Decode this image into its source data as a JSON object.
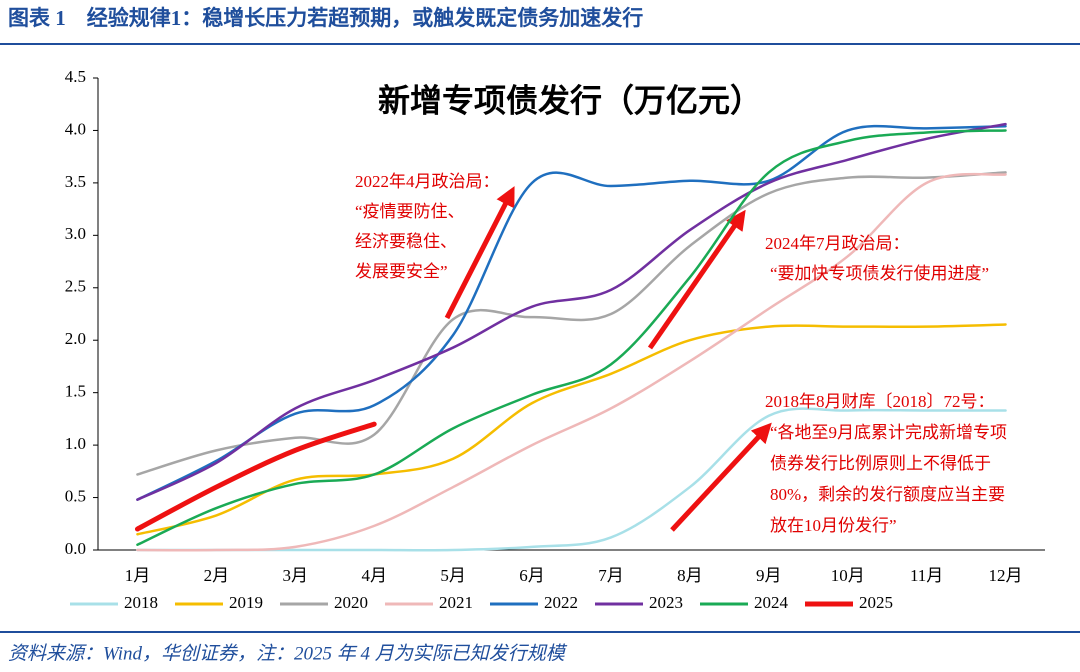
{
  "header": {
    "title": "图表 1　经验规律1：稳增长压力若超预期，或触发既定债务加速发行"
  },
  "chart_data": {
    "type": "line",
    "title": "新增专项债发行（万亿元）",
    "categories": [
      "1月",
      "2月",
      "3月",
      "4月",
      "5月",
      "6月",
      "7月",
      "8月",
      "9月",
      "10月",
      "11月",
      "12月"
    ],
    "ylim": [
      0,
      4.5
    ],
    "yticks": [
      {
        "value": 0,
        "label": "0.0"
      },
      {
        "value": 0.5,
        "label": "0.5"
      },
      {
        "value": 1,
        "label": "1.0"
      },
      {
        "value": 1.5,
        "label": "1.5"
      },
      {
        "value": 2,
        "label": "2.0"
      },
      {
        "value": 2.5,
        "label": "2.5"
      },
      {
        "value": 3,
        "label": "3.0"
      },
      {
        "value": 3.5,
        "label": "3.5"
      },
      {
        "value": 4,
        "label": "4.0"
      },
      {
        "value": 4.5,
        "label": "4.5"
      }
    ],
    "grid": false,
    "legend": "bottom",
    "series": [
      {
        "name": "2018",
        "color": "#a8e0e8",
        "values": [
          0,
          0,
          0,
          0,
          0,
          0.03,
          0.12,
          0.6,
          1.28,
          1.33,
          1.33,
          1.33
        ]
      },
      {
        "name": "2019",
        "color": "#f5bd00",
        "values": [
          0.15,
          0.33,
          0.67,
          0.72,
          0.87,
          1.4,
          1.68,
          2.0,
          2.13,
          2.13,
          2.13,
          2.15
        ]
      },
      {
        "name": "2020",
        "color": "#a6a6a6",
        "values": [
          0.72,
          0.95,
          1.07,
          1.1,
          2.2,
          2.22,
          2.25,
          2.9,
          3.4,
          3.55,
          3.55,
          3.6
        ]
      },
      {
        "name": "2021",
        "color": "#efb8b8",
        "values": [
          0,
          0,
          0.03,
          0.23,
          0.6,
          1.0,
          1.35,
          1.8,
          2.3,
          2.8,
          3.5,
          3.58
        ]
      },
      {
        "name": "2022",
        "color": "#1f6fbf",
        "values": [
          0.48,
          0.85,
          1.3,
          1.38,
          2.05,
          3.5,
          3.47,
          3.52,
          3.52,
          4.0,
          4.02,
          4.04
        ]
      },
      {
        "name": "2023",
        "color": "#7030a0",
        "values": [
          0.48,
          0.83,
          1.35,
          1.62,
          1.93,
          2.32,
          2.48,
          3.05,
          3.5,
          3.72,
          3.92,
          4.06
        ]
      },
      {
        "name": "2024",
        "color": "#1aaa55",
        "values": [
          0.05,
          0.4,
          0.63,
          0.72,
          1.16,
          1.48,
          1.77,
          2.6,
          3.6,
          3.9,
          3.98,
          4.0
        ]
      },
      {
        "name": "2025",
        "color": "#ee1111",
        "line_width": 5,
        "values": [
          0.2,
          0.6,
          0.95,
          1.2,
          null,
          null,
          null,
          null,
          null,
          null,
          null,
          null
        ]
      }
    ],
    "annotations": [
      [
        "2022年4月政治局：",
        "“疫情要防住、",
        "经济要稳住、",
        "发展要安全”"
      ],
      [
        "2024年7月政治局：",
        "“要加快专项债发行使用进度”"
      ],
      [
        "2018年8月财库〔2018〕72号：",
        "“各地至9月底累计完成新增专项",
        "债券发行比例原则上不得低于",
        "80%，剩余的发行额度应当主要",
        "放在10月份发行”"
      ]
    ]
  },
  "footer": {
    "source": "资料来源：Wind，华创证券，注：2025 年 4 月为实际已知发行规模"
  }
}
